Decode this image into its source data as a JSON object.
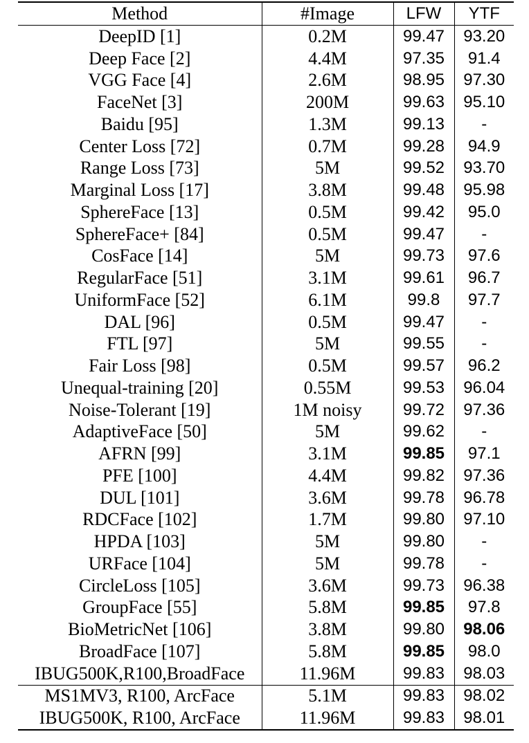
{
  "columns": [
    "Method",
    "#Image",
    "LFW",
    "YTF"
  ],
  "rows": [
    {
      "method": "DeepID [1]",
      "image": "0.2M",
      "lfw": "99.47",
      "ytf": "93.20"
    },
    {
      "method": "Deep Face [2]",
      "image": "4.4M",
      "lfw": "97.35",
      "ytf": "91.4"
    },
    {
      "method": "VGG Face [4]",
      "image": "2.6M",
      "lfw": "98.95",
      "ytf": "97.30"
    },
    {
      "method": "FaceNet [3]",
      "image": "200M",
      "lfw": "99.63",
      "ytf": "95.10"
    },
    {
      "method": "Baidu [95]",
      "image": "1.3M",
      "lfw": "99.13",
      "ytf": "-"
    },
    {
      "method": "Center Loss [72]",
      "image": "0.7M",
      "lfw": "99.28",
      "ytf": "94.9"
    },
    {
      "method": "Range Loss [73]",
      "image": "5M",
      "lfw": "99.52",
      "ytf": "93.70"
    },
    {
      "method": "Marginal Loss [17]",
      "image": "3.8M",
      "lfw": "99.48",
      "ytf": "95.98"
    },
    {
      "method": "SphereFace [13]",
      "image": "0.5M",
      "lfw": "99.42",
      "ytf": "95.0"
    },
    {
      "method": "SphereFace+ [84]",
      "image": "0.5M",
      "lfw": "99.47",
      "ytf": "-"
    },
    {
      "method": "CosFace [14]",
      "image": "5M",
      "lfw": "99.73",
      "ytf": "97.6"
    },
    {
      "method": "RegularFace [51]",
      "image": "3.1M",
      "lfw": "99.61",
      "ytf": "96.7"
    },
    {
      "method": "UniformFace [52]",
      "image": "6.1M",
      "lfw": "99.8",
      "ytf": "97.7"
    },
    {
      "method": "DAL [96]",
      "image": "0.5M",
      "lfw": "99.47",
      "ytf": "-"
    },
    {
      "method": "FTL [97]",
      "image": "5M",
      "lfw": "99.55",
      "ytf": "-"
    },
    {
      "method": "Fair Loss [98]",
      "image": "0.5M",
      "lfw": "99.57",
      "ytf": "96.2"
    },
    {
      "method": "Unequal-training [20]",
      "image": "0.55M",
      "lfw": "99.53",
      "ytf": "96.04"
    },
    {
      "method": "Noise-Tolerant [19]",
      "image": "1M noisy",
      "lfw": "99.72",
      "ytf": "97.36"
    },
    {
      "method": "AdaptiveFace [50]",
      "image": "5M",
      "lfw": "99.62",
      "ytf": "-"
    },
    {
      "method": "AFRN [99]",
      "image": "3.1M",
      "lfw": "99.85",
      "ytf": "97.1",
      "lfw_bold": true
    },
    {
      "method": "PFE [100]",
      "image": "4.4M",
      "lfw": "99.82",
      "ytf": "97.36"
    },
    {
      "method": "DUL [101]",
      "image": "3.6M",
      "lfw": "99.78",
      "ytf": "96.78"
    },
    {
      "method": "RDCFace [102]",
      "image": "1.7M",
      "lfw": "99.80",
      "ytf": "97.10"
    },
    {
      "method": "HPDA [103]",
      "image": "5M",
      "lfw": "99.80",
      "ytf": "-"
    },
    {
      "method": "URFace [104]",
      "image": "5M",
      "lfw": "99.78",
      "ytf": "-"
    },
    {
      "method": "CircleLoss [105]",
      "image": "3.6M",
      "lfw": "99.73",
      "ytf": "96.38"
    },
    {
      "method": "GroupFace [55]",
      "image": "5.8M",
      "lfw": "99.85",
      "ytf": "97.8",
      "lfw_bold": true
    },
    {
      "method": "BioMetricNet [106]",
      "image": "3.8M",
      "lfw": "99.80",
      "ytf": "98.06",
      "ytf_bold": true
    },
    {
      "method": "BroadFace [107]",
      "image": "5.8M",
      "lfw": "99.85",
      "ytf": "98.0",
      "lfw_bold": true
    },
    {
      "method": "IBUG500K,R100,BroadFace",
      "image": "11.96M",
      "lfw": "99.83",
      "ytf": "98.03"
    }
  ],
  "extra_rows": [
    {
      "method": "MS1MV3, R100, ArcFace",
      "image": "5.1M",
      "lfw": "99.83",
      "ytf": "98.02"
    },
    {
      "method": "IBUG500K, R100, ArcFace",
      "image": "11.96M",
      "lfw": "99.83",
      "ytf": "98.01"
    }
  ]
}
